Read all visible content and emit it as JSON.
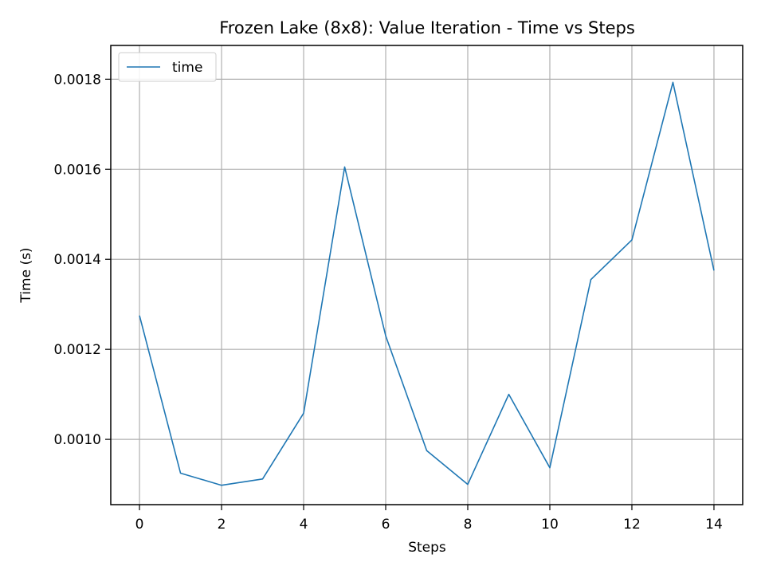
{
  "chart_data": {
    "type": "line",
    "title": "Frozen Lake (8x8): Value Iteration - Time vs Steps",
    "xlabel": "Steps",
    "ylabel": "Time (s)",
    "xlim": [
      -0.7,
      14.7
    ],
    "ylim": [
      0.000855,
      0.001875
    ],
    "xticks": [
      0,
      2,
      4,
      6,
      8,
      10,
      12,
      14
    ],
    "yticks": [
      0.001,
      0.0012,
      0.0014,
      0.0016,
      0.0018
    ],
    "xtick_labels": [
      "0",
      "2",
      "4",
      "6",
      "8",
      "10",
      "12",
      "14"
    ],
    "ytick_labels": [
      "0.0010",
      "0.0012",
      "0.0014",
      "0.0016",
      "0.0018"
    ],
    "grid": true,
    "legend_position": "top-left",
    "series": [
      {
        "name": "time",
        "color": "#1f77b4",
        "x": [
          0,
          1,
          2,
          3,
          4,
          5,
          6,
          7,
          8,
          9,
          10,
          11,
          12,
          13,
          14
        ],
        "values": [
          0.001275,
          0.000925,
          0.000898,
          0.000912,
          0.001058,
          0.001605,
          0.00123,
          0.000975,
          0.0009,
          0.0011,
          0.000937,
          0.001355,
          0.001443,
          0.001793,
          0.001375
        ]
      }
    ]
  }
}
